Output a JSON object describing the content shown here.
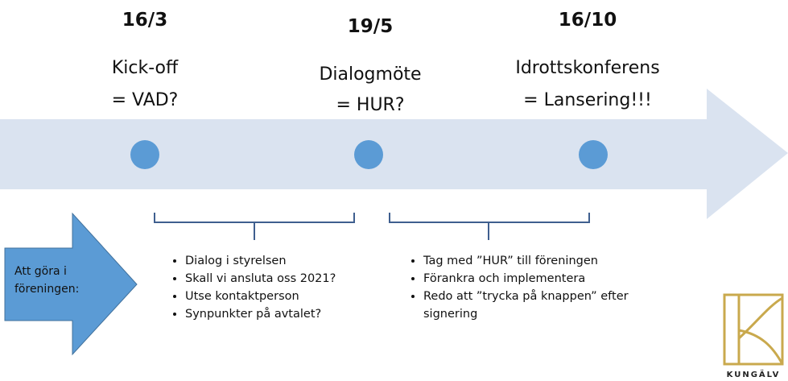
{
  "milestones": [
    {
      "date": "16/3",
      "title": "Kick-off",
      "subtitle": "= VAD?"
    },
    {
      "date": "19/5",
      "title": "Dialogmöte",
      "subtitle": "= HUR?"
    },
    {
      "date": "16/10",
      "title": "Idrottskonferens",
      "subtitle": "= Lansering!!!"
    }
  ],
  "todo_label": "Att göra i föreningen:",
  "phases": [
    {
      "items": [
        "Dialog i styrelsen",
        "Skall vi ansluta oss 2021?",
        "Utse kontaktperson",
        "Synpunkter på avtalet?"
      ]
    },
    {
      "items": [
        "Tag med ”HUR” till föreningen",
        "Förankra och implementera",
        "Redo att ”trycka på knappen” efter signering"
      ]
    }
  ],
  "logo": "KUNGÄLV"
}
